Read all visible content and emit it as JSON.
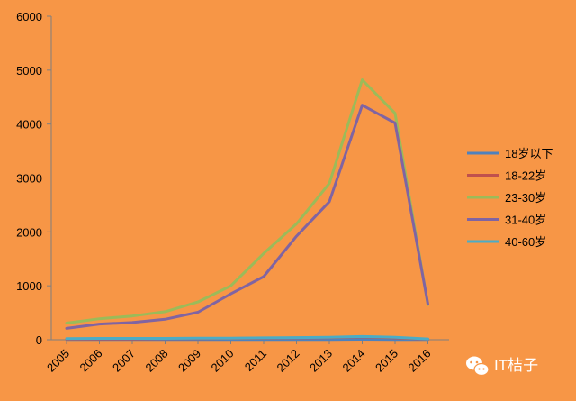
{
  "chart_data": {
    "type": "line",
    "title": "",
    "xlabel": "",
    "ylabel": "",
    "categories": [
      "2005",
      "2006",
      "2007",
      "2008",
      "2009",
      "2010",
      "2011",
      "2012",
      "2013",
      "2014",
      "2015",
      "2016"
    ],
    "ylim": [
      0,
      6000
    ],
    "yticks": [
      0,
      1000,
      2000,
      3000,
      4000,
      5000,
      6000
    ],
    "grid": false,
    "legend_position": "right",
    "series": [
      {
        "name": "18岁以下",
        "color": "#4F81BD",
        "values": [
          5,
          5,
          5,
          5,
          5,
          5,
          5,
          5,
          5,
          8,
          5,
          3
        ]
      },
      {
        "name": "18-22岁",
        "color": "#C0504D",
        "values": [
          10,
          15,
          15,
          20,
          20,
          25,
          30,
          35,
          40,
          55,
          35,
          10
        ]
      },
      {
        "name": "23-30岁",
        "color": "#9BBB59",
        "values": [
          310,
          390,
          440,
          520,
          700,
          1000,
          1600,
          2150,
          2900,
          4820,
          4200,
          650
        ]
      },
      {
        "name": "31-40岁",
        "color": "#8064A2",
        "values": [
          210,
          290,
          320,
          380,
          510,
          850,
          1170,
          1920,
          2560,
          4350,
          4020,
          660
        ]
      },
      {
        "name": "40-60岁",
        "color": "#4BACC6",
        "values": [
          20,
          25,
          25,
          25,
          30,
          30,
          35,
          40,
          45,
          60,
          45,
          15
        ]
      }
    ]
  },
  "watermark": {
    "text": "IT桔子",
    "icon": "wechat-icon"
  }
}
